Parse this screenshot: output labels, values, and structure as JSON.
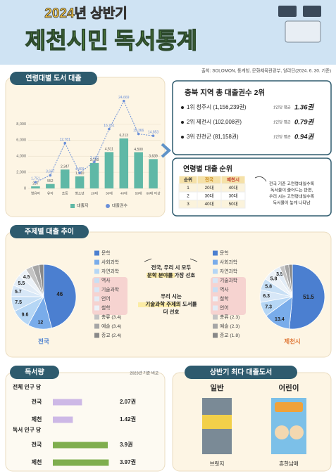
{
  "header": {
    "subtitle": "2024년 상반기",
    "title": "제천시민 독서통계",
    "source": "출처: SOLOMON, 통계청, 문화체육관광부, 알라딘(2024. 6. 30. 기준)"
  },
  "sections": {
    "age": "연령대별 도서 대출",
    "subject": "주제별 대출 추이",
    "reading": "독서량",
    "best": "상반기 최다 대출도서"
  },
  "region": {
    "title": "충북 지역 총 대출권수 2위",
    "rows": [
      {
        "rank": "1위 청주시 (1,156,239권)",
        "label": "1인당 평균",
        "avg": "1.36권"
      },
      {
        "rank": "2위 제천시 (102,008권)",
        "label": "1인당 평균",
        "avg": "0.79권"
      },
      {
        "rank": "3위 진천군 (81,158권)",
        "label": "1인당 평균",
        "avg": "0.94권"
      }
    ]
  },
  "ranking": {
    "title": "연령별 대출 순위",
    "header": [
      "순위",
      "전국",
      "제천시"
    ],
    "rows": [
      [
        "1",
        "20대",
        "40대"
      ],
      [
        "2",
        "30대",
        "30대"
      ],
      [
        "3",
        "40대",
        "50대"
      ]
    ],
    "note": [
      "전국 기준 고연령대일수록",
      "독서율이 줄어드는 반면,",
      "우리 시는 고연령대일수록",
      "독서율이 높게 나타남"
    ]
  },
  "subject_notes": [
    [
      "전국, 우리 시 모두",
      "문학 분야를 가장 선호"
    ],
    [
      "우리 시는",
      "기술과학 주제의 도서를",
      "더 선호"
    ]
  ],
  "books": [
    {
      "group": "일반",
      "title": "브릿지"
    },
    {
      "group": "어린이",
      "title": "흔한남매"
    }
  ],
  "chart_data": [
    {
      "type": "combo",
      "categories": [
        "영유아",
        "유아",
        "초등",
        "청소년",
        "20대",
        "30대",
        "40대",
        "50대",
        "60대 이상"
      ],
      "series": [
        {
          "name": "대출자",
          "type": "bar",
          "color": "#5fb8a6",
          "values": [
            257,
            552,
            2347,
            1510,
            3150,
            4511,
            6213,
            4500,
            3639
          ],
          "value_labels": [
            "257",
            "552",
            "2,347",
            "1,510",
            "3,150",
            "4,511",
            "6,213",
            "4,500",
            "3,639"
          ]
        },
        {
          "name": "대출권수",
          "type": "line",
          "axis": "y2",
          "color": "#6a8fd8",
          "values": [
            1751,
            3697,
            12781,
            4409,
            7497,
            16751,
            24669,
            15366,
            14853
          ],
          "value_labels": [
            "1,751",
            "3,697",
            "12,781",
            "4,409",
            "7,497",
            "16,751",
            "24,669",
            "15,366",
            "14,853"
          ]
        }
      ],
      "ylim": [
        0,
        11000
      ],
      "yticks": [
        0,
        {
          "value": 2000,
          "label": "2,000"
        },
        {
          "value": 4000,
          "label": "4,000"
        },
        {
          "value": 6000,
          "label": "6,000"
        },
        {
          "value": 8000,
          "label": "8,000"
        }
      ],
      "y2lim": [
        0,
        25000
      ],
      "grid": true
    },
    {
      "type": "pie",
      "title": "전국",
      "categories": [
        "문학",
        "사회과학",
        "자연과학",
        "역사",
        "기술과학",
        "언어",
        "철학",
        "총류 (3.4)",
        "예술 (3.4)",
        "종교 (2.4)"
      ],
      "values": [
        46,
        12,
        9.6,
        7.5,
        5.7,
        5.5,
        4.5,
        3.4,
        3.4,
        2.4
      ],
      "colors": [
        "#4b7fd0",
        "#79acea",
        "#b5d6f5",
        "#c7dff5",
        "#d7e7f7",
        "#e2ecf6",
        "#ecf2f8",
        "#c4c4c4",
        "#a6a6a6",
        "#888888"
      ]
    },
    {
      "type": "pie",
      "title": "제천시",
      "categories": [
        "문학",
        "사회과학",
        "자연과학",
        "기술과학",
        "역사",
        "철학",
        "언어",
        "총류 (2.3)",
        "예술 (2.3)",
        "종교 (1.8)"
      ],
      "values": [
        51.5,
        13.4,
        7.3,
        6.3,
        5.8,
        5.8,
        3.5,
        2.3,
        2.3,
        1.8
      ],
      "colors": [
        "#4b7fd0",
        "#79acea",
        "#b5d6f5",
        "#d7e7f7",
        "#c7dff5",
        "#ecf2f8",
        "#e2ecf6",
        "#c4c4c4",
        "#a6a6a6",
        "#888888"
      ]
    },
    {
      "type": "hbar",
      "title": "전체 인구 당",
      "subtitle": "2023년 기준 비교",
      "categories": [
        "전국",
        "제천"
      ],
      "values": [
        2.07,
        1.42
      ],
      "value_labels": [
        "2.07권",
        "1.42권"
      ],
      "color": "#cdb8e6",
      "xlim": [
        0,
        4.5
      ]
    },
    {
      "type": "hbar",
      "title": "독서 인구 당",
      "categories": [
        "전국",
        "제천"
      ],
      "values": [
        3.9,
        3.97
      ],
      "value_labels": [
        "3.9권",
        "3.97권"
      ],
      "color": "#7fae4e",
      "xlim": [
        0,
        4.5
      ]
    }
  ]
}
